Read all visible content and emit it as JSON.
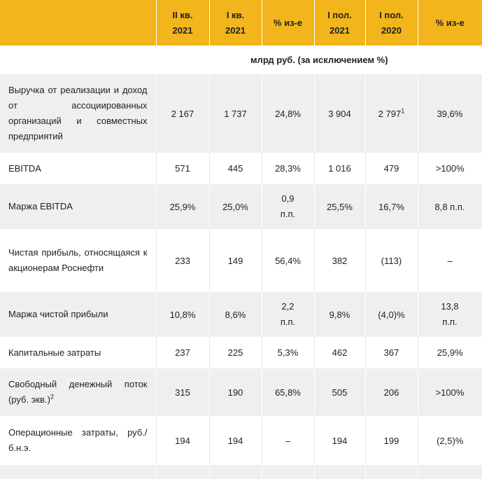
{
  "headers": {
    "col1": "II кв. 2021",
    "col2": "I кв. 2021",
    "col3": "% из-е",
    "col4": "I пол. 2021",
    "col5": "I пол. 2020",
    "col6": "% из-е"
  },
  "units": "млрд руб. (за исключением %)",
  "rows": [
    {
      "label": "Выручка от реализации и доход от ассоциированных организаций и совместных предприятий",
      "v1": "2 167",
      "v2": "1 737",
      "v3": "24,8%",
      "v4": "3 904",
      "v5": "2 797",
      "v5_sup": "1",
      "v6": "39,6%"
    },
    {
      "label": "EBITDA",
      "v1": "571",
      "v2": "445",
      "v3": "28,3%",
      "v4": "1 016",
      "v5": "479",
      "v6": ">100%"
    },
    {
      "label": "Маржа EBITDA",
      "v1": "25,9%",
      "v2": "25,0%",
      "v3": "0,9 п.п.",
      "v4": "25,5%",
      "v5": "16,7%",
      "v6": "8,8 п.п."
    },
    {
      "label": "Чистая прибыль, относящаяся к акционерам Роснефти",
      "v1": "233",
      "v2": "149",
      "v3": "56,4%",
      "v4": "382",
      "v5": "(113)",
      "v6": "–"
    },
    {
      "label": "Маржа чистой прибыли",
      "v1": "10,8%",
      "v2": "8,6%",
      "v3": "2,2 п.п.",
      "v4": "9,8%",
      "v5": "(4,0)%",
      "v6": "13,8 п.п."
    },
    {
      "label": "Капитальные затраты",
      "v1": "237",
      "v2": "225",
      "v3": "5,3%",
      "v4": "462",
      "v5": "367",
      "v6": "25,9%"
    },
    {
      "label": "Свободный денежный поток (руб. экв.)",
      "label_sup": "2",
      "v1": "315",
      "v2": "190",
      "v3": "65,8%",
      "v4": "505",
      "v5": "206",
      "v6": ">100%"
    },
    {
      "label": "Операционные затраты, руб./б.н.э.",
      "v1": "194",
      "v2": "194",
      "v3": "–",
      "v4": "194",
      "v5": "199",
      "v6": "(2,5)%"
    }
  ]
}
